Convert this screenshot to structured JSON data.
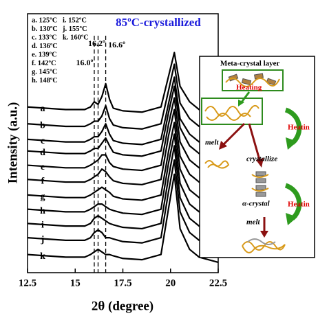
{
  "chart_data": {
    "type": "line",
    "title": "85ºC-crystallized",
    "title_color": "#1a1adb",
    "xlabel": "2θ (degree)",
    "ylabel": "Intensity (a.u.)",
    "xlim": [
      12.5,
      22.5
    ],
    "xticks": [
      12.5,
      15,
      17.5,
      20,
      22.5
    ],
    "ylim": [
      0,
      100
    ],
    "legend_lines": [
      "a. 125ºC",
      "b. 130ºC",
      "c. 133ºC",
      "d. 136ºC",
      "e. 139ºC",
      "f. 142ºC",
      "g. 145ºC",
      "h. 148ºC",
      "i. 152ºC",
      "j. 155ºC",
      "k. 160ºC"
    ],
    "reference_lines": [
      {
        "value": 16.0,
        "label": "16.0º"
      },
      {
        "value": 16.2,
        "label": "16.2º"
      },
      {
        "value": 16.6,
        "label": "16.6º"
      }
    ],
    "x": [
      12.5,
      13.5,
      14.5,
      15.5,
      15.8,
      16.0,
      16.2,
      16.4,
      16.6,
      16.8,
      17.0,
      17.5,
      18.5,
      19.5,
      19.9,
      20.2,
      20.5,
      21.0,
      21.5,
      22.5
    ],
    "series": [
      {
        "name": "a",
        "color": "#000000",
        "values": [
          64,
          63.5,
          63,
          63,
          64,
          66,
          65,
          68,
          73,
          67,
          63.5,
          62.5,
          62,
          64,
          76,
          85,
          72,
          66,
          63,
          61
        ]
      },
      {
        "name": "b",
        "color": "#000000",
        "values": [
          57.5,
          57,
          56.5,
          56.5,
          57.5,
          58.5,
          58.5,
          60.5,
          64.5,
          59.5,
          57,
          56,
          55.5,
          57.5,
          70.5,
          80.5,
          65.5,
          59.5,
          56.5,
          54.5
        ]
      },
      {
        "name": "c",
        "color": "#000000",
        "values": [
          51.5,
          51,
          50.5,
          50.5,
          51.5,
          52.5,
          52.5,
          54.5,
          57.5,
          53.5,
          51,
          50,
          49.5,
          51.5,
          65.5,
          75.5,
          59.5,
          53.5,
          50.5,
          48.5
        ]
      },
      {
        "name": "d",
        "color": "#000000",
        "values": [
          47,
          46.5,
          46,
          46,
          47,
          48,
          48,
          50,
          52,
          49,
          46.5,
          45.5,
          45,
          47,
          62,
          72,
          56,
          49,
          46,
          44
        ]
      },
      {
        "name": "e",
        "color": "#000000",
        "values": [
          41.5,
          41,
          40.5,
          40.5,
          41.5,
          42.5,
          43.5,
          45.5,
          45.5,
          42.5,
          41,
          40,
          39.5,
          41.5,
          57.5,
          67.5,
          50.5,
          43.5,
          40.5,
          38.5
        ]
      },
      {
        "name": "f",
        "color": "#000000",
        "values": [
          36,
          35.5,
          35,
          35,
          36,
          37,
          38,
          40,
          39,
          37,
          35.5,
          34.5,
          34,
          36,
          53,
          63,
          45,
          38,
          35,
          33
        ]
      },
      {
        "name": "g",
        "color": "#000000",
        "values": [
          30,
          29.5,
          29,
          29,
          30,
          31,
          32,
          33,
          32,
          31,
          29.5,
          28.5,
          28,
          30,
          47,
          58,
          40,
          32,
          29,
          27
        ]
      },
      {
        "name": "h",
        "color": "#000000",
        "values": [
          24.5,
          24,
          23.5,
          23.5,
          24.5,
          25.5,
          26.5,
          26.5,
          25.5,
          24.5,
          24,
          23,
          22.5,
          24.5,
          42.5,
          53.5,
          34.5,
          26.5,
          23.5,
          21.5
        ]
      },
      {
        "name": "i",
        "color": "#000000",
        "values": [
          19,
          18.5,
          18,
          18,
          19,
          21,
          22,
          21,
          20,
          19,
          18.5,
          17.5,
          17,
          19,
          37,
          49,
          29,
          21,
          18,
          16
        ]
      },
      {
        "name": "j",
        "color": "#000000",
        "values": [
          13.5,
          13,
          12.5,
          12.5,
          13.5,
          15.5,
          16.5,
          15.5,
          13.5,
          13.5,
          13,
          12,
          11.5,
          13.5,
          31.5,
          43.5,
          23.5,
          15.5,
          12.5,
          10.5
        ]
      },
      {
        "name": "k",
        "color": "#000000",
        "values": [
          7,
          6.5,
          6,
          6,
          7,
          8,
          9,
          8,
          7,
          7,
          6.5,
          5.5,
          5,
          7,
          25,
          38,
          17,
          9,
          6,
          4
        ]
      }
    ]
  },
  "inset": {
    "title": "Meta-crystal layer",
    "heating_1": "Heating",
    "heating_2": "Heatin",
    "heating_3": "Heatin",
    "melt_1": "melt",
    "crystallize": "crystallize",
    "alpha_crystal": "α-crystal",
    "melt_2": "melt"
  }
}
